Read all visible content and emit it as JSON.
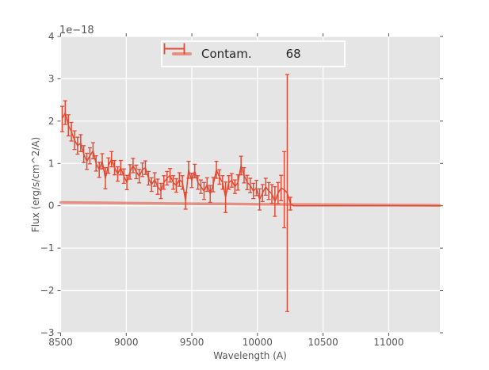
{
  "figure": {
    "bg": "#ffffff"
  },
  "plot": {
    "bg": "#e5e5e5",
    "grid_color": "#ffffff",
    "tick_color": "#555555",
    "text_color": "#555555",
    "offset_label": "1e−18",
    "xlabel": "Wavelength (A)",
    "ylabel": "Flux (erg/s/cm^2/A)"
  },
  "legend": {
    "bg": "#e6e6e6",
    "border": "#fcfcfc",
    "text_color": "#262626"
  },
  "chart_data": {
    "type": "line",
    "title": "",
    "xlabel": "Wavelength (A)",
    "ylabel": "Flux (erg/s/cm^2/A)",
    "y_offset_scale": "1e-18",
    "xlim": [
      8500,
      11390
    ],
    "ylim": [
      -3,
      4
    ],
    "grid": true,
    "legend_position": "upper center",
    "xticks": {
      "values": [
        8500,
        9000,
        9500,
        10000,
        10500,
        11000
      ],
      "labels": [
        "8500",
        "9000",
        "9500",
        "10000",
        "10500",
        "11000"
      ]
    },
    "yticks": {
      "values": [
        -3,
        -2,
        -1,
        0,
        1,
        2,
        3,
        4
      ],
      "labels": [
        "−3",
        "−2",
        "−1",
        "0",
        "1",
        "2",
        "3",
        "4"
      ]
    },
    "series": [
      {
        "name": "Contam.",
        "type": "line",
        "color": "#e24a33",
        "alpha": 0.55,
        "linewidth": 3.5,
        "x": [
          8500,
          8800,
          9100,
          9400,
          9700,
          10000,
          10300,
          10600,
          10900,
          11200,
          11390
        ],
        "y": [
          0.08,
          0.07,
          0.06,
          0.05,
          0.045,
          0.035,
          0.03,
          0.025,
          0.02,
          0.015,
          0.012
        ]
      },
      {
        "name": "68",
        "type": "errorbar",
        "color": "#e24a33",
        "linewidth": 1.5,
        "capsize": 2.5,
        "x": [
          8512,
          8535,
          8559,
          8582,
          8606,
          8629,
          8653,
          8676,
          8700,
          8723,
          8747,
          8770,
          8794,
          8817,
          8841,
          8864,
          8888,
          8911,
          8935,
          8958,
          8982,
          9005,
          9029,
          9052,
          9076,
          9099,
          9123,
          9146,
          9170,
          9193,
          9217,
          9240,
          9264,
          9287,
          9311,
          9334,
          9358,
          9381,
          9405,
          9428,
          9452,
          9475,
          9499,
          9522,
          9546,
          9569,
          9593,
          9616,
          9640,
          9663,
          9687,
          9710,
          9734,
          9757,
          9781,
          9804,
          9828,
          9851,
          9875,
          9898,
          9922,
          9945,
          9969,
          9992,
          10016,
          10039,
          10063,
          10086,
          10110,
          10133,
          10157,
          10180,
          10204,
          10227,
          10251,
          10274,
          10380,
          10500,
          10650,
          10800,
          10950,
          11100,
          11250,
          11390
        ],
        "y": [
          2.05,
          2.2,
          1.9,
          1.75,
          1.55,
          1.42,
          1.48,
          1.22,
          1.05,
          1.18,
          1.3,
          1.0,
          0.85,
          1.05,
          0.65,
          0.95,
          1.1,
          0.9,
          0.75,
          0.9,
          0.7,
          0.55,
          0.8,
          0.95,
          0.8,
          0.7,
          0.85,
          0.9,
          0.65,
          0.5,
          0.62,
          0.45,
          0.35,
          0.55,
          0.65,
          0.72,
          0.55,
          0.48,
          0.62,
          0.55,
          0.12,
          0.85,
          0.6,
          0.82,
          0.55,
          0.45,
          0.35,
          0.5,
          0.28,
          0.5,
          0.85,
          0.68,
          0.55,
          0.2,
          0.55,
          0.6,
          0.45,
          0.55,
          0.95,
          0.72,
          0.55,
          0.48,
          0.35,
          0.42,
          0.15,
          0.3,
          0.45,
          0.35,
          0.28,
          0.1,
          0.3,
          0.42,
          0.38,
          0.3,
          0.05,
          0,
          0,
          0,
          0,
          0,
          0,
          0,
          0,
          0
        ],
        "yerr": [
          0.3,
          0.28,
          0.25,
          0.22,
          0.22,
          0.2,
          0.2,
          0.2,
          0.19,
          0.19,
          0.19,
          0.18,
          0.18,
          0.18,
          0.25,
          0.18,
          0.18,
          0.17,
          0.17,
          0.17,
          0.17,
          0.17,
          0.17,
          0.17,
          0.16,
          0.16,
          0.16,
          0.16,
          0.16,
          0.16,
          0.16,
          0.18,
          0.18,
          0.16,
          0.16,
          0.16,
          0.16,
          0.16,
          0.16,
          0.16,
          0.2,
          0.2,
          0.17,
          0.16,
          0.16,
          0.16,
          0.2,
          0.16,
          0.2,
          0.17,
          0.2,
          0.17,
          0.16,
          0.36,
          0.16,
          0.16,
          0.16,
          0.18,
          0.22,
          0.18,
          0.17,
          0.17,
          0.18,
          0.18,
          0.25,
          0.2,
          0.2,
          0.2,
          0.22,
          0.35,
          0.25,
          0.3,
          0.9,
          2.8,
          0.15,
          0,
          0,
          0,
          0,
          0,
          0,
          0,
          0,
          0
        ]
      }
    ]
  }
}
